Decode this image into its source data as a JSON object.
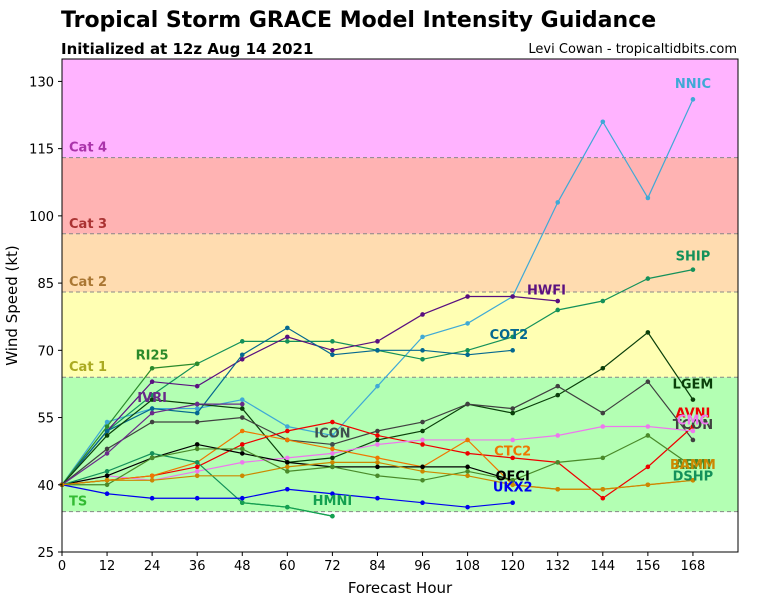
{
  "chart_data": {
    "type": "line",
    "title": "Tropical Storm GRACE Model Intensity Guidance",
    "subtitle": "Initialized at 12z Aug 14 2021",
    "credit": "Levi Cowan - tropicaltidbits.com",
    "xlabel": "Forecast Hour",
    "ylabel": "Wind Speed (kt)",
    "xlim": [
      0,
      180
    ],
    "ylim": [
      25,
      135
    ],
    "xticks": [
      0,
      12,
      24,
      36,
      48,
      60,
      72,
      84,
      96,
      108,
      120,
      132,
      144,
      156,
      168
    ],
    "yticks": [
      25,
      40,
      55,
      70,
      85,
      100,
      115,
      130
    ],
    "grid": false,
    "bands": [
      {
        "label": "",
        "from": 25,
        "to": 34,
        "color": "#ffffff",
        "label_color": "#000000"
      },
      {
        "label": "TS",
        "from": 34,
        "to": 64,
        "color": "#b3ffb3",
        "label_color": "#33bb33"
      },
      {
        "label": "Cat 1",
        "from": 64,
        "to": 83,
        "color": "#ffffb3",
        "label_color": "#aaaa22"
      },
      {
        "label": "Cat 2",
        "from": 83,
        "to": 96,
        "color": "#ffdcb0",
        "label_color": "#aa7733"
      },
      {
        "label": "Cat 3",
        "from": 96,
        "to": 113,
        "color": "#ffb3b3",
        "label_color": "#aa3333"
      },
      {
        "label": "Cat 4",
        "from": 113,
        "to": 135,
        "color": "#ffb3ff",
        "label_color": "#aa33aa"
      }
    ],
    "series": [
      {
        "name": "NNIC",
        "color": "#3fa9d6",
        "x": [
          0,
          12,
          24,
          36,
          48,
          60,
          72,
          84,
          96,
          108,
          120,
          132,
          144,
          156,
          168
        ],
        "y": [
          40,
          54,
          57,
          57,
          59,
          53,
          51,
          62,
          73,
          76,
          82,
          103,
          121,
          104,
          126
        ],
        "label_at": [
          168,
          128.5
        ]
      },
      {
        "name": "SHIP",
        "color": "#14915a",
        "x": [
          0,
          12,
          24,
          36,
          48,
          60,
          72,
          84,
          96,
          108,
          120,
          132,
          144,
          156,
          168
        ],
        "y": [
          40,
          52,
          60,
          67,
          72,
          72,
          72,
          70,
          68,
          70,
          73,
          79,
          81,
          86,
          88
        ],
        "label_at": [
          168,
          90
        ]
      },
      {
        "name": "HWFI",
        "color": "#5a1080",
        "x": [
          0,
          12,
          24,
          36,
          48,
          60,
          72,
          84,
          96,
          108,
          120,
          132
        ],
        "y": [
          40,
          52,
          63,
          62,
          68,
          73,
          70,
          72,
          78,
          82,
          82,
          81
        ],
        "label_at": [
          129,
          82.5
        ]
      },
      {
        "name": "COT2",
        "color": "#046890",
        "x": [
          0,
          12,
          24,
          36,
          48,
          60,
          72,
          84,
          96,
          108,
          120
        ],
        "y": [
          40,
          52,
          57,
          56,
          69,
          75,
          69,
          70,
          70,
          69,
          70
        ],
        "label_at": [
          119,
          72.5
        ]
      },
      {
        "name": "RI25",
        "color": "#2b8a2b",
        "x": [
          0,
          12,
          24,
          36
        ],
        "y": [
          40,
          53,
          66,
          67
        ],
        "label_at": [
          24,
          68
        ]
      },
      {
        "name": "LGEM",
        "color": "#0a3f0a",
        "x": [
          0,
          12,
          24,
          36,
          48,
          60,
          72,
          84,
          96,
          108,
          120,
          132,
          144,
          156,
          168
        ],
        "y": [
          40,
          51,
          59,
          58,
          57,
          45,
          46,
          50,
          52,
          58,
          56,
          60,
          66,
          74,
          59
        ],
        "label_at": [
          168,
          61.5
        ]
      },
      {
        "name": "TCON",
        "color": "#404040",
        "x": [
          0,
          12,
          24,
          36,
          48,
          60,
          72,
          84,
          96,
          108,
          120,
          132,
          144,
          156,
          168
        ],
        "y": [
          40,
          48,
          54,
          54,
          55,
          50,
          49,
          52,
          54,
          58,
          57,
          62,
          56,
          63,
          50
        ],
        "label_at": [
          168,
          52.5
        ]
      },
      {
        "name": "IVRI",
        "color": "#6a2a8a",
        "x": [
          0,
          12,
          24,
          36,
          48
        ],
        "y": [
          40,
          47,
          56,
          58,
          58
        ],
        "label_at": [
          24,
          58.5
        ]
      },
      {
        "name": "ICON",
        "color": "#3f4f4f",
        "x": [
          72
        ],
        "y": [
          49
        ],
        "label_at": [
          72,
          50.5
        ]
      },
      {
        "name": "AVNI",
        "color": "#ee0000",
        "x": [
          0,
          12,
          24,
          36,
          48,
          60,
          72,
          84,
          96,
          108,
          120,
          132,
          144,
          156,
          168
        ],
        "y": [
          40,
          41,
          42,
          44,
          49,
          52,
          54,
          51,
          49,
          47,
          46,
          45,
          37,
          44,
          53
        ],
        "label_at": [
          168,
          55
        ]
      },
      {
        "name": "CMC",
        "color": "#ee77ee",
        "x": [
          0,
          12,
          24,
          36,
          48,
          60,
          72,
          84,
          96,
          108,
          120,
          132,
          144,
          156,
          168
        ],
        "y": [
          40,
          42,
          41,
          43,
          45,
          46,
          47,
          49,
          50,
          50,
          50,
          51,
          53,
          53,
          52
        ],
        "label_at": [
          168,
          53.5
        ]
      },
      {
        "name": "CTC2",
        "color": "#ee7700",
        "x": [
          0,
          12,
          24,
          36,
          48,
          60,
          72,
          84,
          96,
          108,
          120,
          132,
          144,
          156,
          168
        ],
        "y": [
          40,
          41,
          42,
          45,
          52,
          50,
          48,
          46,
          44,
          50,
          40,
          39,
          39,
          40,
          41
        ],
        "label_at": [
          120,
          46.5
        ]
      },
      {
        "name": "OFCI",
        "color": "#000000",
        "x": [
          0,
          12,
          24,
          36,
          48,
          60,
          72,
          84,
          96,
          108,
          120
        ],
        "y": [
          40,
          42,
          46,
          49,
          47,
          45,
          44,
          44,
          44,
          44,
          41
        ],
        "label_at": [
          120,
          41
        ]
      },
      {
        "name": "DSHP",
        "color": "#14915a",
        "x": [
          0,
          12,
          24,
          36,
          48,
          60,
          72,
          84,
          96,
          108,
          120,
          132,
          144,
          156,
          168
        ],
        "y": [
          40,
          43,
          47,
          45,
          36,
          35,
          33,
          null,
          null,
          null,
          null,
          null,
          null,
          null,
          null
        ],
        "label_at": [
          168,
          41
        ]
      },
      {
        "name": "AEMI",
        "color": "#4a8a2a",
        "x": [
          0,
          12,
          24,
          36,
          48,
          60,
          72,
          84,
          96,
          108,
          120,
          132,
          144,
          156,
          168
        ],
        "y": [
          40,
          40,
          46,
          48,
          48,
          43,
          44,
          42,
          41,
          43,
          41,
          45,
          46,
          51,
          44
        ],
        "label_at": [
          168,
          43.5
        ]
      },
      {
        "name": "HMNI",
        "color": "#14a050",
        "x": [
          48,
          60,
          72
        ],
        "y": [
          36,
          35,
          33
        ],
        "label_at": [
          72,
          35.5
        ]
      },
      {
        "name": "UKX2",
        "color": "#0000ee",
        "x": [
          0,
          12,
          24,
          36,
          48,
          60,
          72,
          84,
          96,
          108,
          120
        ],
        "y": [
          40,
          38,
          37,
          37,
          37,
          39,
          38,
          37,
          36,
          35,
          36
        ],
        "label_at": [
          120,
          38.5
        ]
      },
      {
        "name": "BAMM",
        "color": "#cc8800",
        "x": [
          0,
          12,
          24,
          36,
          48,
          60,
          72,
          84,
          96,
          108,
          120,
          132,
          144,
          156,
          168
        ],
        "y": [
          40,
          41,
          41,
          42,
          42,
          44,
          45,
          45,
          43,
          42,
          40,
          39,
          39,
          40,
          41
        ],
        "label_at": [
          168,
          43.5
        ]
      }
    ]
  }
}
